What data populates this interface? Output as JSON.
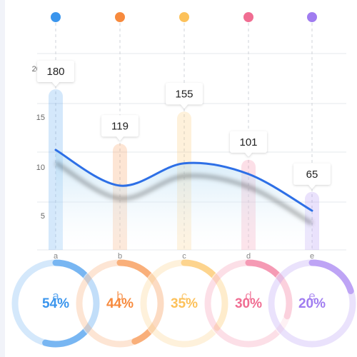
{
  "chart_data": {
    "type": "bar",
    "categories": [
      "a",
      "b",
      "c",
      "d",
      "e"
    ],
    "values": [
      180,
      119,
      155,
      101,
      65
    ],
    "colors": [
      "#3a95ed",
      "#f78a3d",
      "#fcc15a",
      "#f06d92",
      "#a07cf0"
    ],
    "y_ticks": [
      "200",
      "15",
      "10",
      "5"
    ],
    "ylim": [
      0,
      200
    ],
    "grid": true,
    "trend_line": {
      "type": "line",
      "color": "#2d6fe6",
      "values": [
        112,
        72,
        97,
        85,
        44
      ]
    },
    "rings": [
      {
        "label": "54%",
        "fraction": 0.54
      },
      {
        "label": "44%",
        "fraction": 0.44
      },
      {
        "label": "35%",
        "fraction": 0.35
      },
      {
        "label": "30%",
        "fraction": 0.3
      },
      {
        "label": "20%",
        "fraction": 0.2
      }
    ]
  }
}
